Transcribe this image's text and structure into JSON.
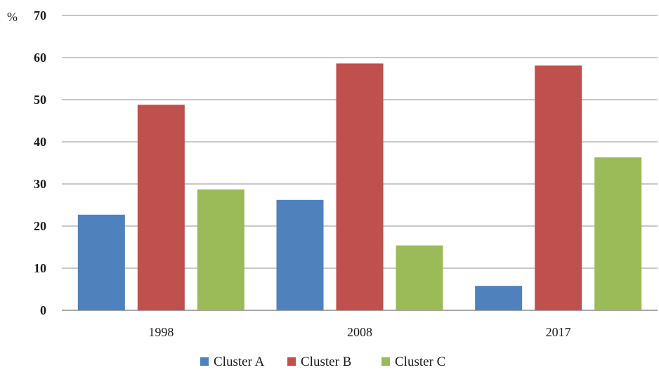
{
  "chart_data": {
    "type": "bar",
    "title": "",
    "xlabel": "",
    "ylabel": "",
    "y_unit": "%",
    "categories": [
      "1998",
      "2008",
      "2017"
    ],
    "ylim": [
      0,
      70
    ],
    "yticks": [
      0,
      10,
      20,
      30,
      40,
      50,
      60,
      70
    ],
    "grid": true,
    "legend_position": "bottom",
    "series": [
      {
        "name": "Cluster A",
        "color": "#4f81bd",
        "values": [
          22.7,
          26.2,
          5.8
        ]
      },
      {
        "name": "Cluster B",
        "color": "#c0504d",
        "values": [
          48.8,
          58.6,
          58.1
        ]
      },
      {
        "name": "Cluster C",
        "color": "#9bbb59",
        "values": [
          28.7,
          15.4,
          36.3
        ]
      }
    ]
  }
}
